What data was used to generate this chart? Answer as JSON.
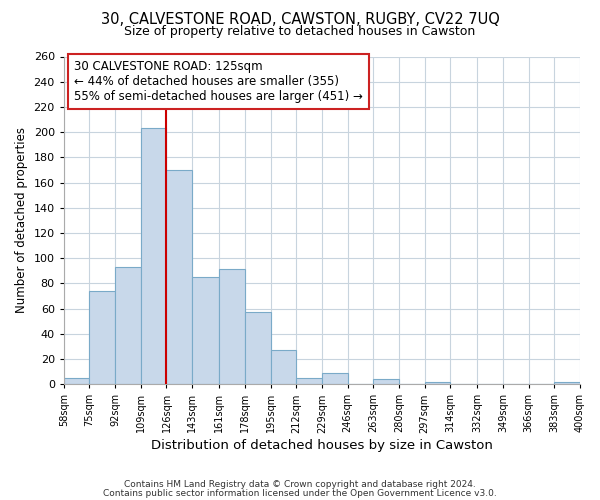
{
  "title1": "30, CALVESTONE ROAD, CAWSTON, RUGBY, CV22 7UQ",
  "title2": "Size of property relative to detached houses in Cawston",
  "xlabel": "Distribution of detached houses by size in Cawston",
  "ylabel": "Number of detached properties",
  "bin_labels": [
    "58sqm",
    "75sqm",
    "92sqm",
    "109sqm",
    "126sqm",
    "143sqm",
    "161sqm",
    "178sqm",
    "195sqm",
    "212sqm",
    "229sqm",
    "246sqm",
    "263sqm",
    "280sqm",
    "297sqm",
    "314sqm",
    "332sqm",
    "349sqm",
    "366sqm",
    "383sqm",
    "400sqm"
  ],
  "bar_heights": [
    5,
    74,
    93,
    203,
    170,
    85,
    91,
    57,
    27,
    5,
    9,
    0,
    4,
    0,
    2,
    0,
    0,
    0,
    0,
    2
  ],
  "bin_edges": [
    58,
    75,
    92,
    109,
    126,
    143,
    161,
    178,
    195,
    212,
    229,
    246,
    263,
    280,
    297,
    314,
    332,
    349,
    366,
    383,
    400
  ],
  "bar_color": "#c8d8ea",
  "bar_edgecolor": "#7aaac8",
  "vline_x": 126,
  "vline_color": "#cc0000",
  "ylim": [
    0,
    260
  ],
  "yticks": [
    0,
    20,
    40,
    60,
    80,
    100,
    120,
    140,
    160,
    180,
    200,
    220,
    240,
    260
  ],
  "annotation_title": "30 CALVESTONE ROAD: 125sqm",
  "annotation_line1": "← 44% of detached houses are smaller (355)",
  "annotation_line2": "55% of semi-detached houses are larger (451) →",
  "footer1": "Contains HM Land Registry data © Crown copyright and database right 2024.",
  "footer2": "Contains public sector information licensed under the Open Government Licence v3.0.",
  "background_color": "#ffffff",
  "grid_color": "#c8d4de"
}
